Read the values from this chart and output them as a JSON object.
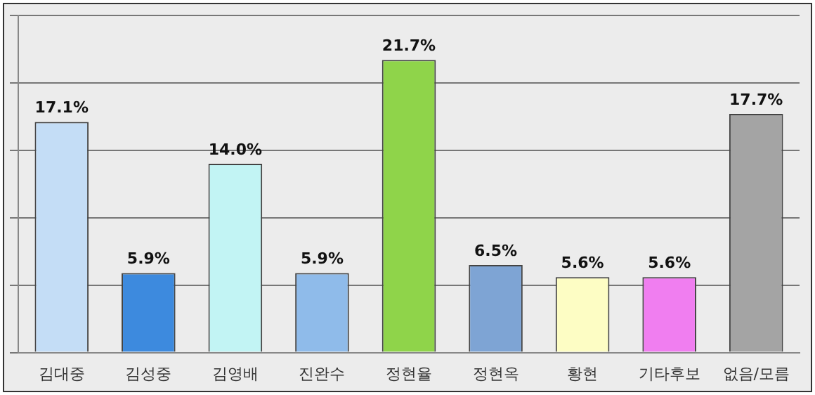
{
  "chart_data": {
    "type": "bar",
    "categories": [
      "김대중",
      "김성중",
      "김영배",
      "진완수",
      "정현율",
      "정현옥",
      "황현",
      "기타후보",
      "없음/모름"
    ],
    "values": [
      17.1,
      5.9,
      14.0,
      5.9,
      21.7,
      6.5,
      5.6,
      5.6,
      17.7
    ],
    "colors": [
      "#c4ddf6",
      "#3d8ade",
      "#c2f4f4",
      "#8fbbea",
      "#8fd44a",
      "#7ea4d4",
      "#fdfdc4",
      "#f07ef0",
      "#a4a4a4"
    ],
    "value_labels": [
      "17.1%",
      "5.9%",
      "14.0%",
      "5.9%",
      "21.7%",
      "6.5%",
      "5.6%",
      "5.6%",
      "17.7%"
    ],
    "ylim": [
      0,
      25
    ],
    "yticks": [
      {
        "value": 0,
        "label": null
      },
      {
        "value": 5,
        "label": null
      },
      {
        "value": 10,
        "label": null
      },
      {
        "value": 15,
        "label": null
      },
      {
        "value": 20,
        "label": null
      },
      {
        "value": 25,
        "label": null
      }
    ],
    "tick_labels": "x",
    "grid": "y",
    "legend": false
  }
}
